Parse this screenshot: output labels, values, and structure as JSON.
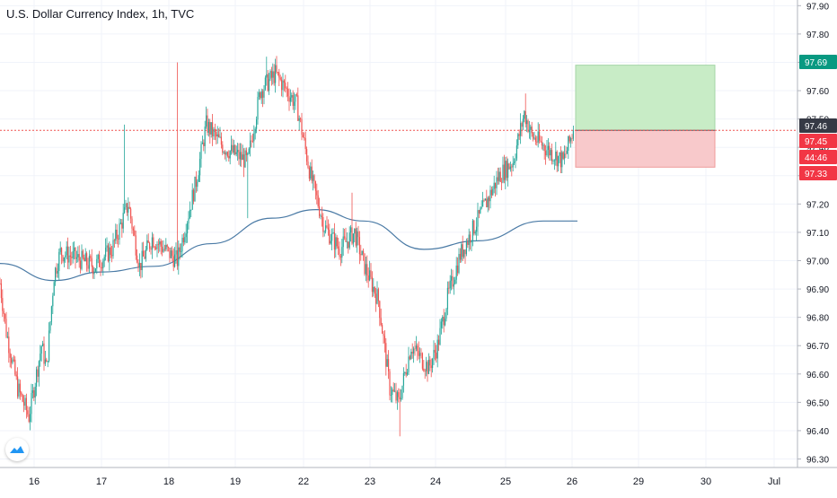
{
  "title": "U.S. Dollar Currency Index, 1h, TVC",
  "price_axis": {
    "ticks": [
      "97.90",
      "97.80",
      "97.70",
      "97.60",
      "97.50",
      "97.40",
      "97.30",
      "97.20",
      "97.10",
      "97.00",
      "96.90",
      "96.80",
      "96.70",
      "96.60",
      "96.50",
      "96.40",
      "96.30"
    ],
    "tags": [
      {
        "label": "97.69",
        "color": "#089981"
      },
      {
        "label": "97.46",
        "color": "#363a45"
      },
      {
        "label": "97.45",
        "color": "#f23645"
      },
      {
        "label": "44:46",
        "color": "#f23645"
      },
      {
        "label": "97.33",
        "color": "#f23645"
      }
    ]
  },
  "time_axis": {
    "labels": [
      "16",
      "17",
      "18",
      "19",
      "22",
      "23",
      "24",
      "25",
      "26",
      "29",
      "30",
      "Jul"
    ]
  },
  "colors": {
    "up": "#26a69a",
    "down": "#ef5350",
    "ma": "#4a7aa5",
    "profit_zone": "#c8ecc6",
    "loss_zone": "#f8c9cb"
  },
  "chart_data": {
    "type": "candlestick",
    "title": "U.S. Dollar Currency Index, 1h, TVC",
    "ylim": [
      96.27,
      97.92
    ],
    "current_price": 97.46,
    "position": {
      "type": "long",
      "entry": 97.46,
      "target": 97.69,
      "stop": 97.33
    },
    "moving_average": [
      {
        "x": "Jun 14 20:00",
        "y": 96.99
      },
      {
        "x": "Jun 16 07:00",
        "y": 96.93
      },
      {
        "x": "Jun 17 07:00",
        "y": 96.96
      },
      {
        "x": "Jun 18 07:00",
        "y": 96.98
      },
      {
        "x": "Jun 19 07:00",
        "y": 97.06
      },
      {
        "x": "Jun 21 07:00",
        "y": 97.15
      },
      {
        "x": "Jun 22 07:00",
        "y": 97.18
      },
      {
        "x": "Jun 23 07:00",
        "y": 97.14
      },
      {
        "x": "Jun 24 07:00",
        "y": 97.04
      },
      {
        "x": "Jun 25 07:00",
        "y": 97.07
      },
      {
        "x": "Jun 26 07:00",
        "y": 97.14
      }
    ],
    "anchors": [
      {
        "x": 0,
        "y": 96.92
      },
      {
        "x": 5,
        "y": 96.75
      },
      {
        "x": 14,
        "y": 96.55
      },
      {
        "x": 23,
        "y": 96.45
      },
      {
        "x": 33,
        "y": 96.7
      },
      {
        "x": 37,
        "y": 96.62
      },
      {
        "x": 43,
        "y": 96.95
      },
      {
        "x": 48,
        "y": 97.03
      },
      {
        "x": 60,
        "y": 97.01
      },
      {
        "x": 75,
        "y": 96.98
      },
      {
        "x": 89,
        "y": 97.04
      },
      {
        "x": 102,
        "y": 97.2
      },
      {
        "x": 111,
        "y": 96.98
      },
      {
        "x": 121,
        "y": 97.08
      },
      {
        "x": 141,
        "y": 97.0
      },
      {
        "x": 156,
        "y": 97.28
      },
      {
        "x": 164,
        "y": 97.48
      },
      {
        "x": 178,
        "y": 97.4
      },
      {
        "x": 197,
        "y": 97.35
      },
      {
        "x": 207,
        "y": 97.6
      },
      {
        "x": 219,
        "y": 97.66
      },
      {
        "x": 236,
        "y": 97.55
      },
      {
        "x": 247,
        "y": 97.3
      },
      {
        "x": 258,
        "y": 97.12
      },
      {
        "x": 270,
        "y": 97.04
      },
      {
        "x": 282,
        "y": 97.1
      },
      {
        "x": 290,
        "y": 96.98
      },
      {
        "x": 301,
        "y": 96.86
      },
      {
        "x": 310,
        "y": 96.55
      },
      {
        "x": 317,
        "y": 96.5
      },
      {
        "x": 327,
        "y": 96.7
      },
      {
        "x": 341,
        "y": 96.62
      },
      {
        "x": 348,
        "y": 96.7
      },
      {
        "x": 356,
        "y": 96.87
      },
      {
        "x": 366,
        "y": 97.02
      },
      {
        "x": 384,
        "y": 97.18
      },
      {
        "x": 397,
        "y": 97.3
      },
      {
        "x": 408,
        "y": 97.35
      },
      {
        "x": 417,
        "y": 97.52
      },
      {
        "x": 423,
        "y": 97.44
      },
      {
        "x": 439,
        "y": 97.38
      },
      {
        "x": 448,
        "y": 97.35
      },
      {
        "x": 456,
        "y": 97.46
      }
    ],
    "spikes": [
      {
        "x": 99,
        "high": 97.48
      },
      {
        "x": 141,
        "high": 97.7
      },
      {
        "x": 197,
        "low": 97.15
      },
      {
        "x": 212,
        "high": 97.72
      },
      {
        "x": 280,
        "high": 97.24
      },
      {
        "x": 318,
        "low": 96.38
      },
      {
        "x": 418,
        "high": 97.59
      }
    ]
  }
}
